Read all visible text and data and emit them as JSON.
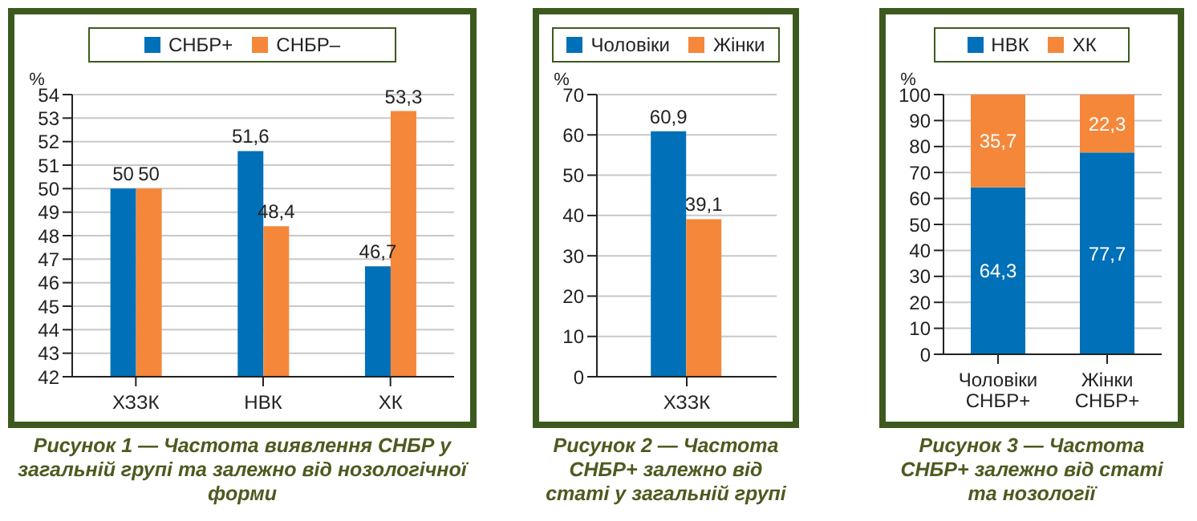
{
  "chart_data": [
    {
      "type": "bar",
      "title": "Рисунок 1 — Частота виявлення СНБР у загальній групі та залежно від нозологічної форми",
      "ylabel": "%",
      "categories": [
        "ХЗЗК",
        "НВК",
        "ХК"
      ],
      "series": [
        {
          "name": "СНБР+",
          "color": "#0070b8",
          "values": [
            50,
            51.6,
            46.7
          ],
          "value_labels": [
            "50",
            "51,6",
            "46,7"
          ]
        },
        {
          "name": "СНБР–",
          "color": "#f5873a",
          "values": [
            50,
            48.4,
            53.3
          ],
          "value_labels": [
            "50",
            "48,4",
            "53,3"
          ]
        }
      ],
      "ylim": [
        42,
        54
      ],
      "yticks": [
        42,
        43,
        44,
        45,
        46,
        47,
        48,
        49,
        50,
        51,
        52,
        53,
        54
      ],
      "grid": "y",
      "legend": "top"
    },
    {
      "type": "bar",
      "title": "Рисунок 2 — Частота СНБР+ залежно від статі у загальній групі",
      "ylabel": "%",
      "categories": [
        "ХЗЗК"
      ],
      "series": [
        {
          "name": "Чоловіки",
          "color": "#0070b8",
          "values": [
            60.9
          ],
          "value_labels": [
            "60,9"
          ]
        },
        {
          "name": "Жінки",
          "color": "#f5873a",
          "values": [
            39.1
          ],
          "value_labels": [
            "39,1"
          ]
        }
      ],
      "ylim": [
        0,
        70
      ],
      "yticks": [
        0,
        10,
        20,
        30,
        40,
        50,
        60,
        70
      ],
      "grid": "y",
      "legend": "top"
    },
    {
      "type": "bar",
      "stacked": true,
      "title": "Рисунок 3 — Частота СНБР+ залежно від статі та нозології",
      "ylabel": "%",
      "categories": [
        "Чоловіки\nСНБР+",
        "Жінки\nСНБР+"
      ],
      "series": [
        {
          "name": "НВК",
          "color": "#0070b8",
          "values": [
            64.3,
            77.7
          ],
          "value_labels": [
            "64,3",
            "77,7"
          ]
        },
        {
          "name": "ХК",
          "color": "#f5873a",
          "values": [
            35.7,
            22.3
          ],
          "value_labels": [
            "35,7",
            "22,3"
          ]
        }
      ],
      "ylim": [
        0,
        100
      ],
      "yticks": [
        0,
        10,
        20,
        30,
        40,
        50,
        60,
        70,
        80,
        90,
        100
      ],
      "grid": "y",
      "legend": "top"
    }
  ]
}
